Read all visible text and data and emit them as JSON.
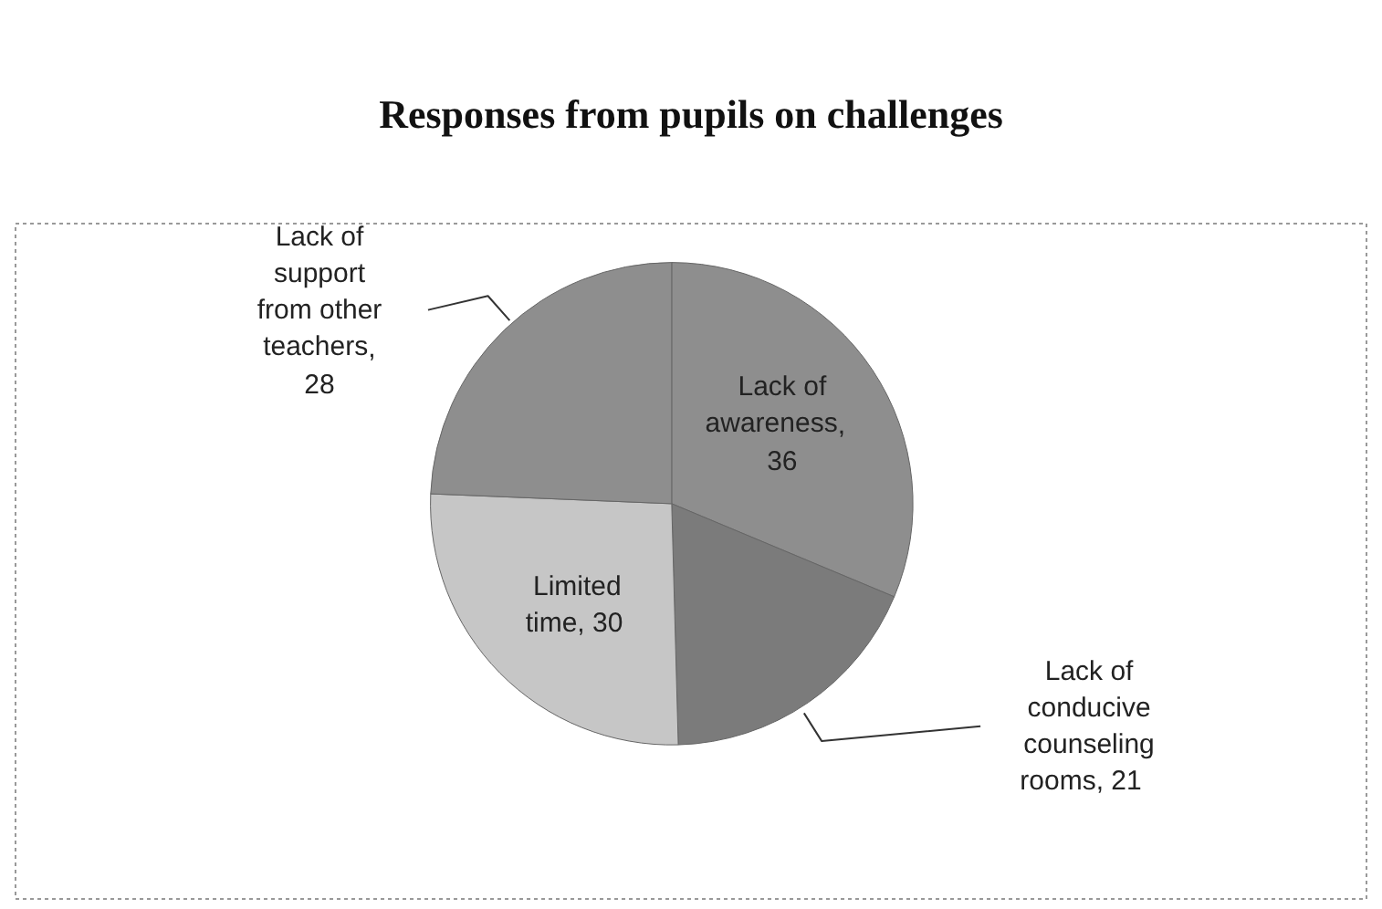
{
  "chart_data": {
    "type": "pie",
    "title": "Responses from pupils on challenges",
    "categories": [
      "Lack of awareness",
      "Lack of conducive counseling rooms",
      "Limited time",
      "Lack of support from other teachers"
    ],
    "values": [
      36,
      21,
      30,
      28
    ],
    "colors": [
      "#8e8e8e",
      "#7b7b7b",
      "#c6c6c6",
      "#8e8e8e"
    ],
    "value_labels": [
      ", 36",
      ", 21",
      ", 30",
      ", 28"
    ]
  }
}
